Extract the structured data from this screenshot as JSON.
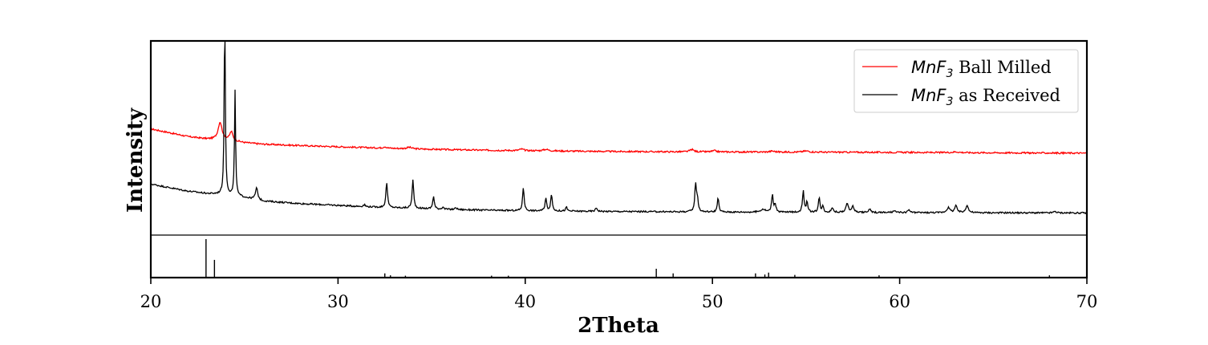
{
  "chart_data": {
    "type": "line",
    "xlabel": "2Theta",
    "ylabel": "Intensity",
    "xlim": [
      20,
      70
    ],
    "xticks": [
      20,
      30,
      40,
      50,
      60,
      70
    ],
    "yticks_shown": false,
    "grid": false,
    "legend_position": "top-right",
    "series": [
      {
        "name": "MnF3 Ball Milled",
        "legend_main": "MnF",
        "legend_sub": "3",
        "legend_rest": " Ball Milled",
        "color": "#ff0000",
        "baseline": [
          [
            20,
            0.547
          ],
          [
            21,
            0.527
          ],
          [
            22,
            0.507
          ],
          [
            23,
            0.495
          ],
          [
            24,
            0.49
          ],
          [
            25,
            0.476
          ],
          [
            26,
            0.468
          ],
          [
            28,
            0.461
          ],
          [
            30,
            0.455
          ],
          [
            32,
            0.449
          ],
          [
            34,
            0.444
          ],
          [
            36,
            0.44
          ],
          [
            38,
            0.437
          ],
          [
            40,
            0.435
          ],
          [
            44,
            0.431
          ],
          [
            48,
            0.429
          ],
          [
            52,
            0.428
          ],
          [
            56,
            0.427
          ],
          [
            60,
            0.426
          ],
          [
            65,
            0.424
          ],
          [
            70,
            0.422
          ]
        ],
        "peaks": [
          [
            23.7,
            0.09,
            0.25
          ],
          [
            24.3,
            0.045,
            0.2
          ],
          [
            32.5,
            0.008,
            0.2
          ],
          [
            33.8,
            0.008,
            0.3
          ],
          [
            39.8,
            0.008,
            0.25
          ],
          [
            41.1,
            0.008,
            0.3
          ],
          [
            48.9,
            0.012,
            0.25
          ],
          [
            50.1,
            0.006,
            0.25
          ],
          [
            53.2,
            0.005,
            0.3
          ],
          [
            55,
            0.006,
            0.4
          ],
          [
            63,
            0.004,
            0.4
          ]
        ]
      },
      {
        "name": "MnF3 as Received",
        "legend_main": "MnF",
        "legend_sub": "3",
        "legend_rest": " as Received",
        "color": "#000000",
        "baseline": [
          [
            20,
            0.263
          ],
          [
            21,
            0.244
          ],
          [
            22,
            0.226
          ],
          [
            23,
            0.214
          ],
          [
            24,
            0.208
          ],
          [
            25,
            0.194
          ],
          [
            26,
            0.175
          ],
          [
            28,
            0.162
          ],
          [
            30,
            0.153
          ],
          [
            32,
            0.144
          ],
          [
            34,
            0.138
          ],
          [
            36,
            0.132
          ],
          [
            38,
            0.128
          ],
          [
            40,
            0.125
          ],
          [
            44,
            0.122
          ],
          [
            48,
            0.12
          ],
          [
            52,
            0.118
          ],
          [
            56,
            0.117
          ],
          [
            60,
            0.116
          ],
          [
            65,
            0.115
          ],
          [
            70,
            0.114
          ]
        ],
        "peaks": [
          [
            23.95,
            0.95,
            0.07
          ],
          [
            24.5,
            0.54,
            0.07
          ],
          [
            25.65,
            0.06,
            0.15
          ],
          [
            31.4,
            0.01,
            0.12
          ],
          [
            32.6,
            0.13,
            0.1
          ],
          [
            34,
            0.145,
            0.1
          ],
          [
            35.1,
            0.065,
            0.1
          ],
          [
            35.6,
            0.012,
            0.1
          ],
          [
            36.3,
            0.01,
            0.12
          ],
          [
            39.9,
            0.12,
            0.1
          ],
          [
            41.1,
            0.065,
            0.1
          ],
          [
            41.4,
            0.085,
            0.1
          ],
          [
            42.2,
            0.02,
            0.1
          ],
          [
            43.8,
            0.018,
            0.12
          ],
          [
            49.1,
            0.145,
            0.1
          ],
          [
            49.2,
            0.06,
            0.1
          ],
          [
            50.3,
            0.07,
            0.1
          ],
          [
            52.7,
            0.015,
            0.3
          ],
          [
            53.2,
            0.09,
            0.1
          ],
          [
            53.35,
            0.04,
            0.1
          ],
          [
            54.85,
            0.11,
            0.1
          ],
          [
            55.05,
            0.05,
            0.1
          ],
          [
            55.7,
            0.075,
            0.1
          ],
          [
            55.9,
            0.03,
            0.1
          ],
          [
            56.4,
            0.025,
            0.12
          ],
          [
            57.2,
            0.045,
            0.15
          ],
          [
            57.5,
            0.03,
            0.15
          ],
          [
            58.4,
            0.018,
            0.12
          ],
          [
            59.7,
            0.01,
            0.12
          ],
          [
            60.5,
            0.015,
            0.12
          ],
          [
            62.6,
            0.025,
            0.2
          ],
          [
            63,
            0.035,
            0.15
          ],
          [
            63.6,
            0.04,
            0.15
          ],
          [
            68.3,
            0.008,
            0.15
          ]
        ]
      }
    ],
    "reference_lines": [
      [
        22.95,
        1.0
      ],
      [
        23.4,
        0.46
      ],
      [
        32.5,
        0.11
      ],
      [
        32.8,
        0.06
      ],
      [
        33.6,
        0.05
      ],
      [
        38.2,
        0.05
      ],
      [
        39.1,
        0.05
      ],
      [
        47,
        0.23
      ],
      [
        47.9,
        0.11
      ],
      [
        52.3,
        0.11
      ],
      [
        52.8,
        0.08
      ],
      [
        53,
        0.13
      ],
      [
        54.4,
        0.07
      ],
      [
        58.9,
        0.06
      ],
      [
        68,
        0.06
      ]
    ],
    "colors": {
      "axes": "#000000",
      "background": "#ffffff"
    }
  }
}
